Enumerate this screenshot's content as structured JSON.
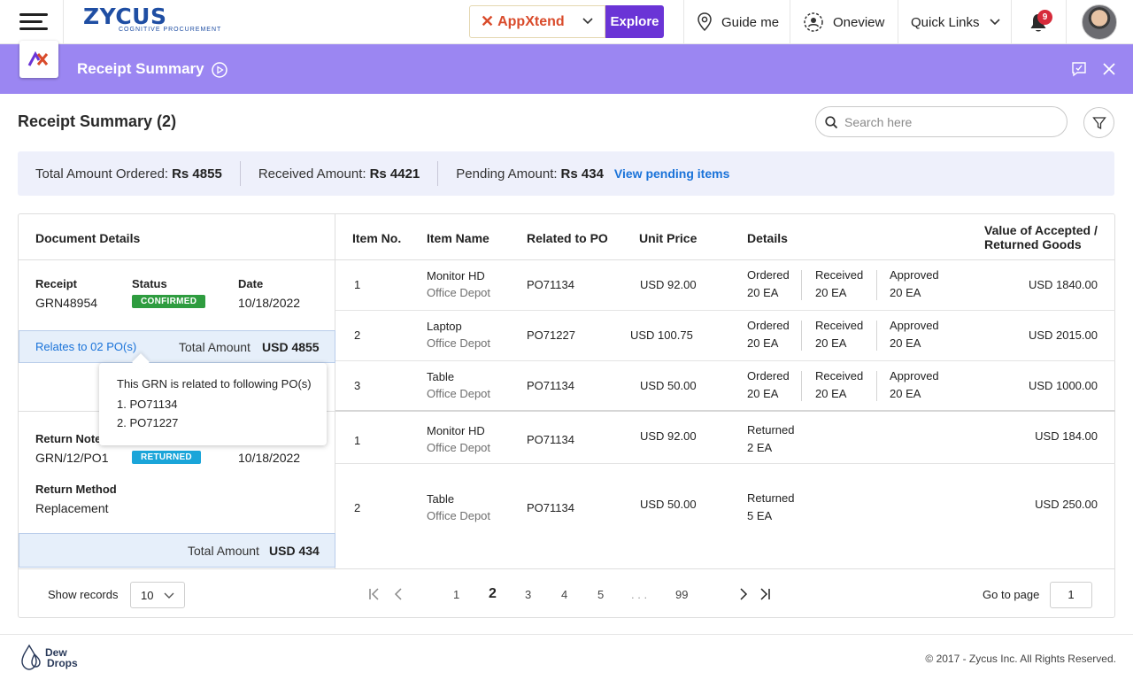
{
  "topnav": {
    "logo": "ZYCUS",
    "logo_sub": "COGNITIVE PROCUREMENT",
    "appxtend": "AppXtend",
    "explore": "Explore",
    "guide": "Guide me",
    "oneview": "Oneview",
    "quicklinks": "Quick Links",
    "notif_count": "9"
  },
  "header": {
    "title": "Receipt Summary"
  },
  "page": {
    "title": "Receipt Summary (2)",
    "search_placeholder": "Search here"
  },
  "summary": {
    "ordered_label": "Total Amount Ordered:",
    "ordered_value": "Rs 4855",
    "received_label": "Received Amount:",
    "received_value": "Rs 4421",
    "pending_label": "Pending Amount:",
    "pending_value": "Rs 434",
    "view_pending": "View pending items"
  },
  "left": {
    "header": "Document Details",
    "receipt_label": "Receipt",
    "receipt_value": "GRN48954",
    "status_label": "Status",
    "status_value": "CONFIRMED",
    "date_label": "Date",
    "date_value": "10/18/2022",
    "relates": "Relates to 02 PO(s)",
    "total_label": "Total Amount",
    "total_value": "USD 4855",
    "tooltip_title": "This GRN is related to following PO(s)",
    "tooltip_items": [
      "1. PO71134",
      "2. PO71227"
    ],
    "return_label": "Return Note",
    "return_value": "GRN/12/PO1",
    "return_status": "RETURNED",
    "return_date": "10/18/2022",
    "method_label": "Return Method",
    "method_value": "Replacement",
    "total2_label": "Total Amount",
    "total2_value": "USD 434"
  },
  "table": {
    "headers": {
      "item_no": "Item No.",
      "item_name": "Item Name",
      "related_po": "Related to PO",
      "unit_price": "Unit Price",
      "details": "Details",
      "value1": "Value of Accepted /",
      "value2": "Returned Goods"
    },
    "rows": [
      {
        "no": "1",
        "name": "Monitor HD",
        "vendor": "Office Depot",
        "po": "PO71134",
        "price": "USD 92.00",
        "d1l": "Ordered",
        "d1v": "20 EA",
        "d2l": "Received",
        "d2v": "20 EA",
        "d3l": "Approved",
        "d3v": "20 EA",
        "value": "USD 1840.00"
      },
      {
        "no": "2",
        "name": "Laptop",
        "vendor": "Office Depot",
        "po": "PO71227",
        "price": "USD 100.75",
        "d1l": "Ordered",
        "d1v": "20 EA",
        "d2l": "Received",
        "d2v": "20 EA",
        "d3l": "Approved",
        "d3v": "20 EA",
        "value": "USD 2015.00"
      },
      {
        "no": "3",
        "name": "Table",
        "vendor": "Office Depot",
        "po": "PO71134",
        "price": "USD 50.00",
        "d1l": "Ordered",
        "d1v": "20 EA",
        "d2l": "Received",
        "d2v": "20 EA",
        "d3l": "Approved",
        "d3v": "20 EA",
        "value": "USD 1000.00"
      },
      {
        "no": "1",
        "name": "Monitor HD",
        "vendor": "Office Depot",
        "po": "PO71134",
        "price": "USD 92.00",
        "d1l": "Returned",
        "d1v": "2 EA",
        "value": "USD 184.00"
      },
      {
        "no": "2",
        "name": "Table",
        "vendor": "Office Depot",
        "po": "PO71134",
        "price": "USD 50.00",
        "d1l": "Returned",
        "d1v": "5 EA",
        "value": "USD 250.00"
      }
    ]
  },
  "pager": {
    "show_records": "Show records",
    "records_value": "10",
    "pages": [
      "1",
      "2",
      "3",
      "4",
      "5",
      ". . .",
      "99"
    ],
    "active": "2",
    "goto_label": "Go to page",
    "goto_value": "1"
  },
  "footer": {
    "brand1": "Dew",
    "brand2": "Drops",
    "copyright": "© 2017 - Zycus Inc. All Rights Reserved."
  }
}
